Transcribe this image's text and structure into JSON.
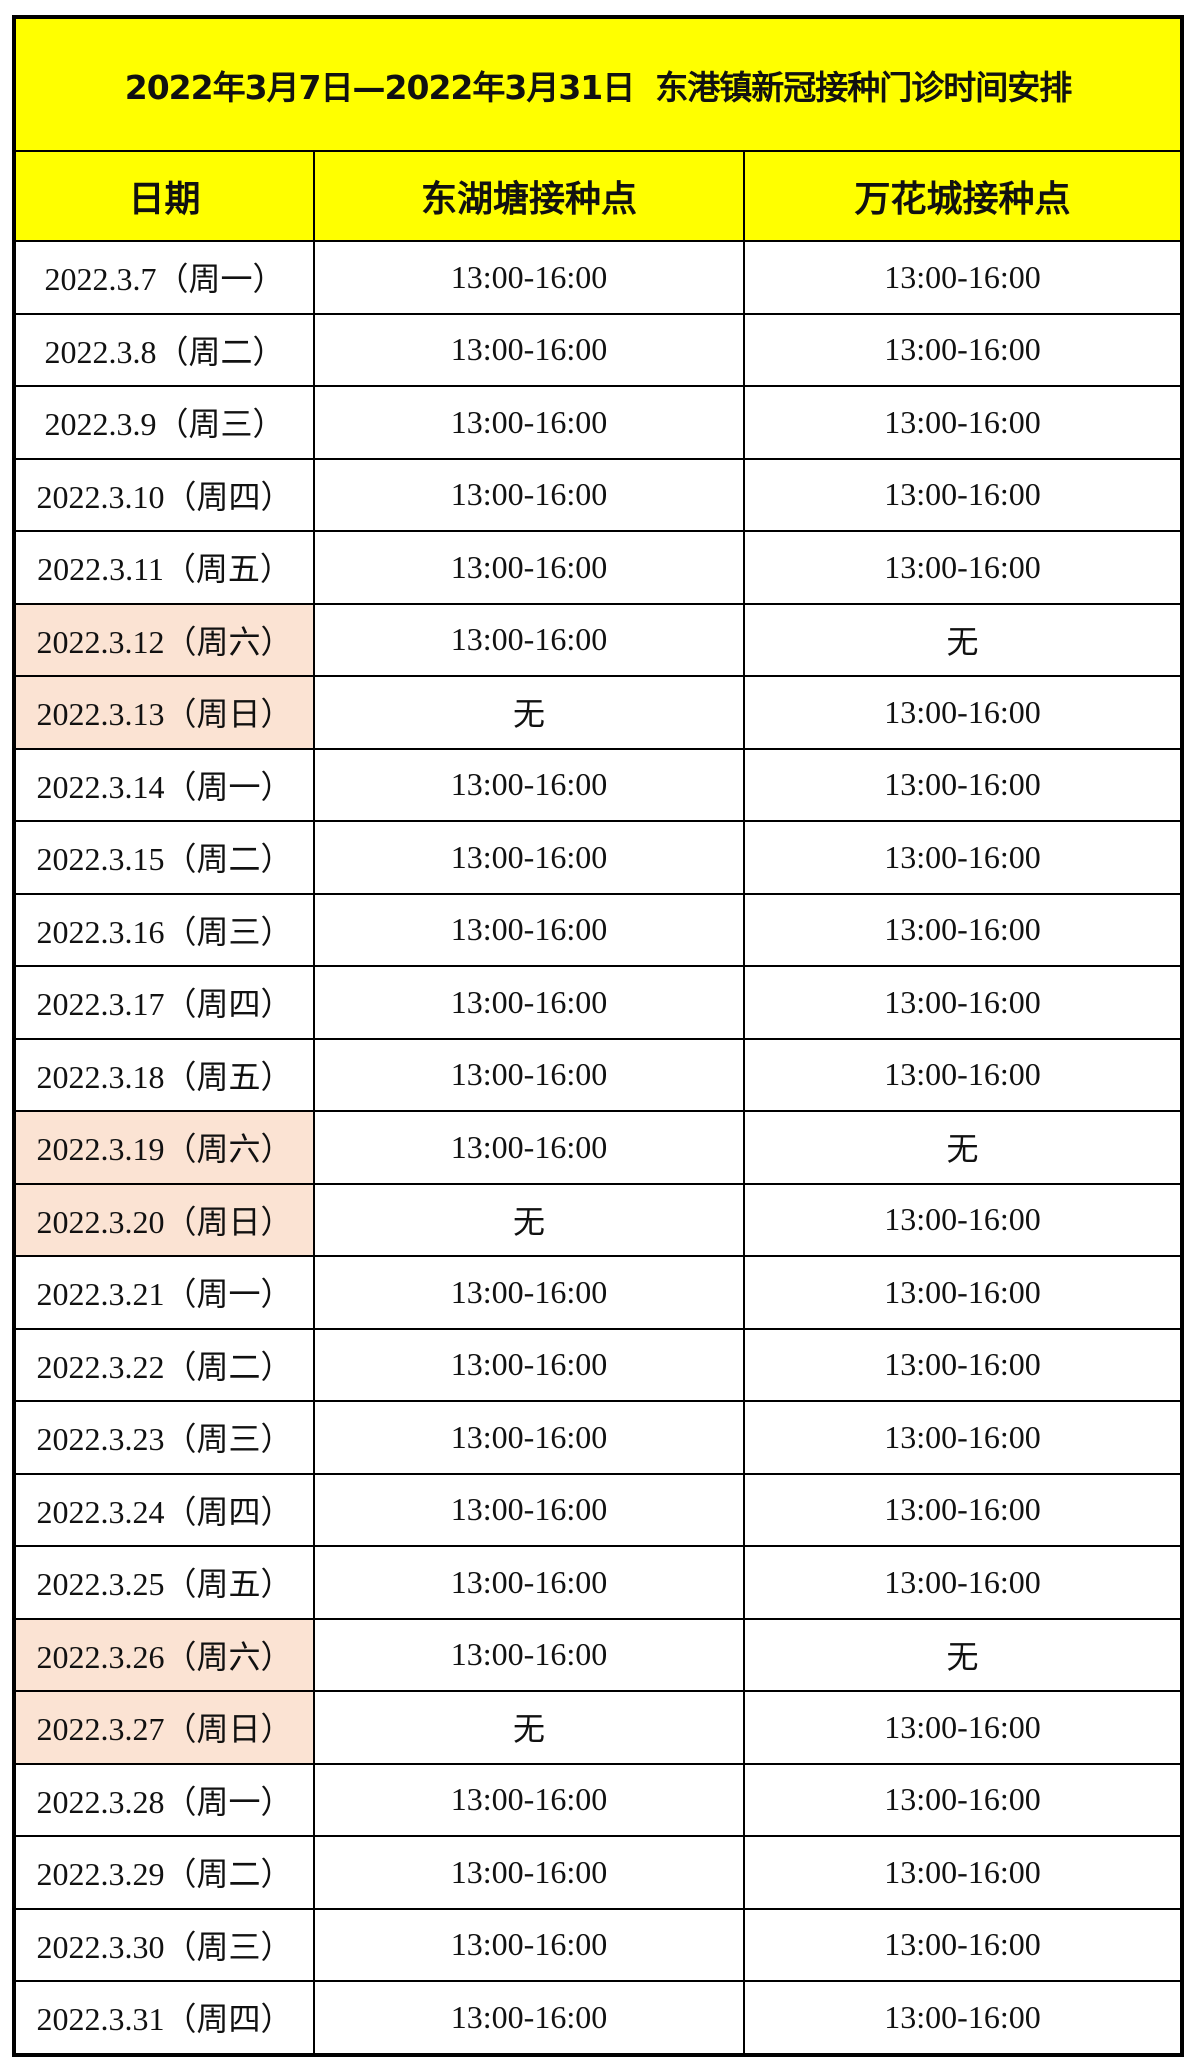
{
  "title": "2022年3月7日—2022年3月31日  东港镇新冠接种门诊时间安排",
  "headers": [
    "日期",
    "东湖塘接种点",
    "万花城接种点"
  ],
  "colors": {
    "header_bg": "#ffff00",
    "weekend_bg": "#fbe3d3"
  },
  "rows": [
    {
      "date": "2022.3.7（周一）",
      "donghutang": "13:00-16:00",
      "wanhuacheng": "13:00-16:00",
      "weekend": false
    },
    {
      "date": "2022.3.8（周二）",
      "donghutang": "13:00-16:00",
      "wanhuacheng": "13:00-16:00",
      "weekend": false
    },
    {
      "date": "2022.3.9（周三）",
      "donghutang": "13:00-16:00",
      "wanhuacheng": "13:00-16:00",
      "weekend": false
    },
    {
      "date": "2022.3.10（周四）",
      "donghutang": "13:00-16:00",
      "wanhuacheng": "13:00-16:00",
      "weekend": false
    },
    {
      "date": "2022.3.11（周五）",
      "donghutang": "13:00-16:00",
      "wanhuacheng": "13:00-16:00",
      "weekend": false
    },
    {
      "date": "2022.3.12（周六）",
      "donghutang": "13:00-16:00",
      "wanhuacheng": "无",
      "weekend": true
    },
    {
      "date": "2022.3.13（周日）",
      "donghutang": "无",
      "wanhuacheng": "13:00-16:00",
      "weekend": true
    },
    {
      "date": "2022.3.14（周一）",
      "donghutang": "13:00-16:00",
      "wanhuacheng": "13:00-16:00",
      "weekend": false
    },
    {
      "date": "2022.3.15（周二）",
      "donghutang": "13:00-16:00",
      "wanhuacheng": "13:00-16:00",
      "weekend": false
    },
    {
      "date": "2022.3.16（周三）",
      "donghutang": "13:00-16:00",
      "wanhuacheng": "13:00-16:00",
      "weekend": false
    },
    {
      "date": "2022.3.17（周四）",
      "donghutang": "13:00-16:00",
      "wanhuacheng": "13:00-16:00",
      "weekend": false
    },
    {
      "date": "2022.3.18（周五）",
      "donghutang": "13:00-16:00",
      "wanhuacheng": "13:00-16:00",
      "weekend": false
    },
    {
      "date": "2022.3.19（周六）",
      "donghutang": "13:00-16:00",
      "wanhuacheng": "无",
      "weekend": true
    },
    {
      "date": "2022.3.20（周日）",
      "donghutang": "无",
      "wanhuacheng": "13:00-16:00",
      "weekend": true
    },
    {
      "date": "2022.3.21（周一）",
      "donghutang": "13:00-16:00",
      "wanhuacheng": "13:00-16:00",
      "weekend": false
    },
    {
      "date": "2022.3.22（周二）",
      "donghutang": "13:00-16:00",
      "wanhuacheng": "13:00-16:00",
      "weekend": false
    },
    {
      "date": "2022.3.23（周三）",
      "donghutang": "13:00-16:00",
      "wanhuacheng": "13:00-16:00",
      "weekend": false
    },
    {
      "date": "2022.3.24（周四）",
      "donghutang": "13:00-16:00",
      "wanhuacheng": "13:00-16:00",
      "weekend": false
    },
    {
      "date": "2022.3.25（周五）",
      "donghutang": "13:00-16:00",
      "wanhuacheng": "13:00-16:00",
      "weekend": false
    },
    {
      "date": "2022.3.26（周六）",
      "donghutang": "13:00-16:00",
      "wanhuacheng": "无",
      "weekend": true
    },
    {
      "date": "2022.3.27（周日）",
      "donghutang": "无",
      "wanhuacheng": "13:00-16:00",
      "weekend": true
    },
    {
      "date": "2022.3.28（周一）",
      "donghutang": "13:00-16:00",
      "wanhuacheng": "13:00-16:00",
      "weekend": false
    },
    {
      "date": "2022.3.29（周二）",
      "donghutang": "13:00-16:00",
      "wanhuacheng": "13:00-16:00",
      "weekend": false
    },
    {
      "date": "2022.3.30（周三）",
      "donghutang": "13:00-16:00",
      "wanhuacheng": "13:00-16:00",
      "weekend": false
    },
    {
      "date": "2022.3.31（周四）",
      "donghutang": "13:00-16:00",
      "wanhuacheng": "13:00-16:00",
      "weekend": false
    }
  ]
}
